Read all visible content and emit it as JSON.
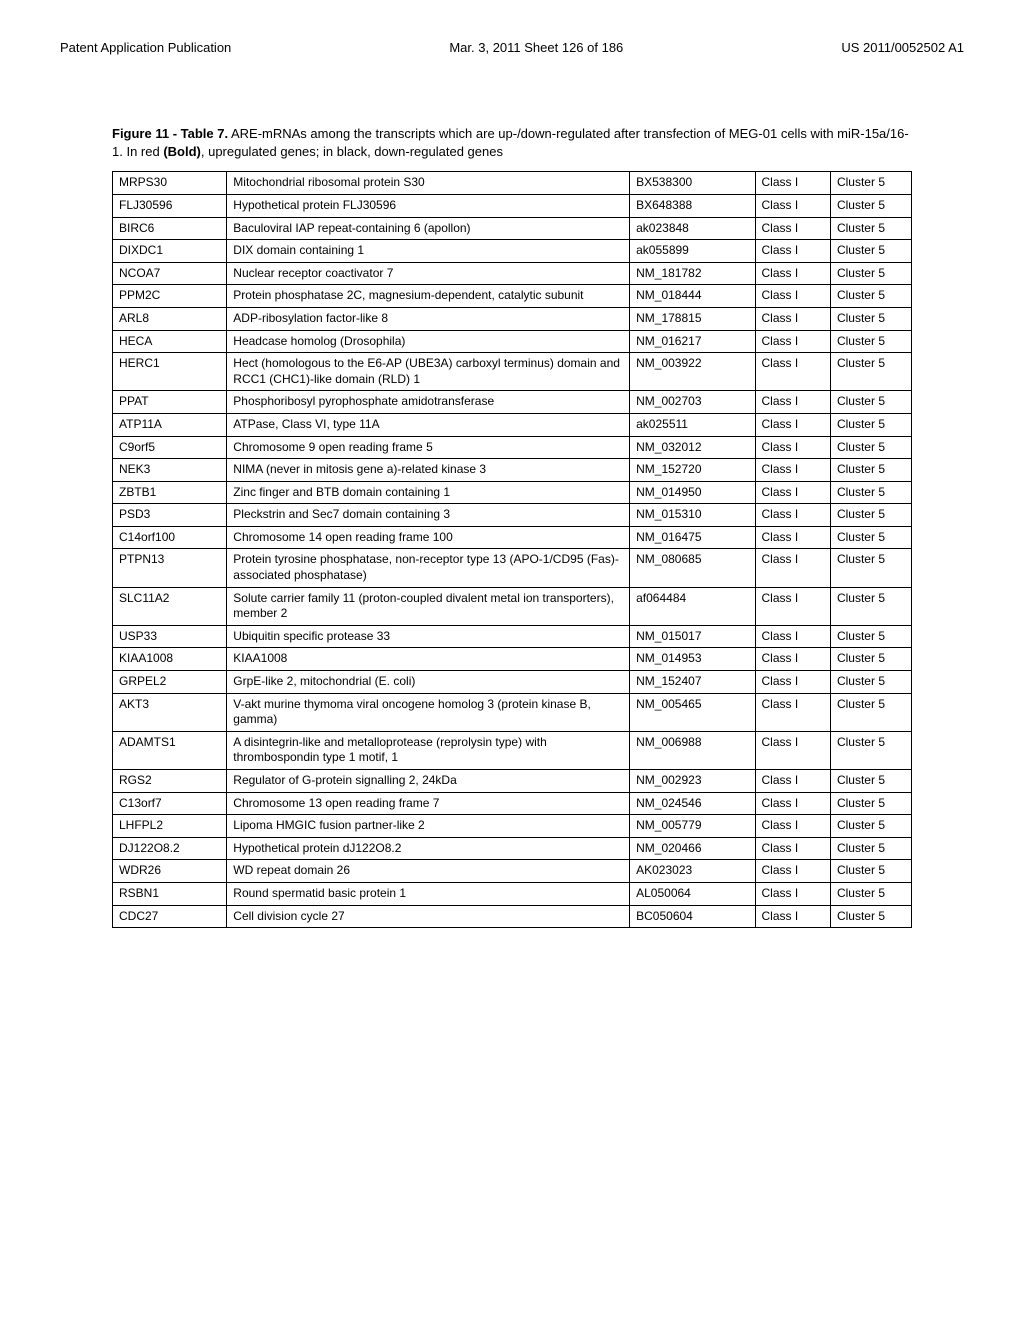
{
  "header": {
    "left": "Patent Application Publication",
    "center": "Mar. 3, 2011  Sheet 126 of 186",
    "right": "US 2011/0052502 A1"
  },
  "caption_parts": {
    "fig_label": "Figure 11 - Table 7.",
    "line1": " ARE-mRNAs among the transcripts which are up-/down-regulated after transfection of MEG-01 cells with miR-15a/16-1. In red ",
    "bold_mid": "(Bold)",
    "line2": ", upregulated genes; in black, down-regulated genes"
  },
  "table": {
    "font_size": 12,
    "border_color": "#000000",
    "rows": [
      [
        "MRPS30",
        "Mitochondrial ribosomal protein S30",
        "BX538300",
        "Class I",
        "Cluster 5"
      ],
      [
        "FLJ30596",
        "Hypothetical protein FLJ30596",
        "BX648388",
        "Class I",
        "Cluster 5"
      ],
      [
        "BIRC6",
        "Baculoviral IAP repeat-containing 6 (apollon)",
        "ak023848",
        "Class I",
        "Cluster 5"
      ],
      [
        "DIXDC1",
        "DIX domain containing 1",
        "ak055899",
        "Class I",
        "Cluster 5"
      ],
      [
        "NCOA7",
        "Nuclear receptor coactivator 7",
        "NM_181782",
        "Class I",
        "Cluster 5"
      ],
      [
        "PPM2C",
        "Protein phosphatase 2C, magnesium-dependent, catalytic subunit",
        "NM_018444",
        "Class I",
        "Cluster 5"
      ],
      [
        "ARL8",
        "ADP-ribosylation factor-like 8",
        "NM_178815",
        "Class I",
        "Cluster 5"
      ],
      [
        "HECA",
        "Headcase homolog (Drosophila)",
        "NM_016217",
        "Class I",
        "Cluster 5"
      ],
      [
        "HERC1",
        "Hect (homologous to the E6-AP (UBE3A) carboxyl terminus) domain and RCC1 (CHC1)-like domain (RLD) 1",
        "NM_003922",
        "Class I",
        "Cluster 5"
      ],
      [
        "PPAT",
        "Phosphoribosyl pyrophosphate amidotransferase",
        "NM_002703",
        "Class I",
        "Cluster 5"
      ],
      [
        "ATP11A",
        "ATPase, Class VI, type 11A",
        "ak025511",
        "Class I",
        "Cluster 5"
      ],
      [
        "C9orf5",
        "Chromosome 9 open reading frame 5",
        "NM_032012",
        "Class I",
        "Cluster 5"
      ],
      [
        "NEK3",
        "NIMA (never in mitosis gene a)-related kinase 3",
        "NM_152720",
        "Class I",
        "Cluster 5"
      ],
      [
        "ZBTB1",
        "Zinc finger and BTB domain containing 1",
        "NM_014950",
        "Class I",
        "Cluster 5"
      ],
      [
        "PSD3",
        "Pleckstrin and Sec7 domain containing 3",
        "NM_015310",
        "Class I",
        "Cluster 5"
      ],
      [
        "C14orf100",
        "Chromosome 14 open reading frame 100",
        "NM_016475",
        "Class I",
        "Cluster 5"
      ],
      [
        "PTPN13",
        "Protein tyrosine phosphatase, non-receptor type 13 (APO-1/CD95 (Fas)-associated phosphatase)",
        "NM_080685",
        "Class I",
        "Cluster 5"
      ],
      [
        "SLC11A2",
        "Solute carrier family 11 (proton-coupled divalent metal ion transporters), member 2",
        "af064484",
        "Class I",
        "Cluster 5"
      ],
      [
        "USP33",
        "Ubiquitin specific protease 33",
        "NM_015017",
        "Class I",
        "Cluster 5"
      ],
      [
        "KIAA1008",
        "KIAA1008",
        "NM_014953",
        "Class I",
        "Cluster 5"
      ],
      [
        "GRPEL2",
        "GrpE-like 2, mitochondrial (E. coli)",
        "NM_152407",
        "Class I",
        "Cluster 5"
      ],
      [
        "AKT3",
        "V-akt murine thymoma viral oncogene homolog 3 (protein kinase B, gamma)",
        "NM_005465",
        "Class I",
        "Cluster 5"
      ],
      [
        "ADAMTS1",
        "A disintegrin-like and metalloprotease (reprolysin type) with thrombospondin type 1 motif, 1",
        "NM_006988",
        "Class I",
        "Cluster 5"
      ],
      [
        "RGS2",
        "Regulator of G-protein signalling 2, 24kDa",
        "NM_002923",
        "Class I",
        "Cluster 5"
      ],
      [
        "C13orf7",
        "Chromosome 13 open reading frame 7",
        "NM_024546",
        "Class I",
        "Cluster 5"
      ],
      [
        "LHFPL2",
        "Lipoma HMGIC fusion partner-like 2",
        "NM_005779",
        "Class I",
        "Cluster 5"
      ],
      [
        "DJ122O8.2",
        "Hypothetical protein dJ122O8.2",
        "NM_020466",
        "Class I",
        "Cluster 5"
      ],
      [
        "WDR26",
        "WD repeat domain 26",
        "AK023023",
        "Class I",
        "Cluster 5"
      ],
      [
        "RSBN1",
        "Round spermatid basic protein 1",
        "AL050064",
        "Class I",
        "Cluster 5"
      ],
      [
        "CDC27",
        "Cell division cycle 27",
        "BC050604",
        "Class I",
        "Cluster 5"
      ]
    ]
  }
}
